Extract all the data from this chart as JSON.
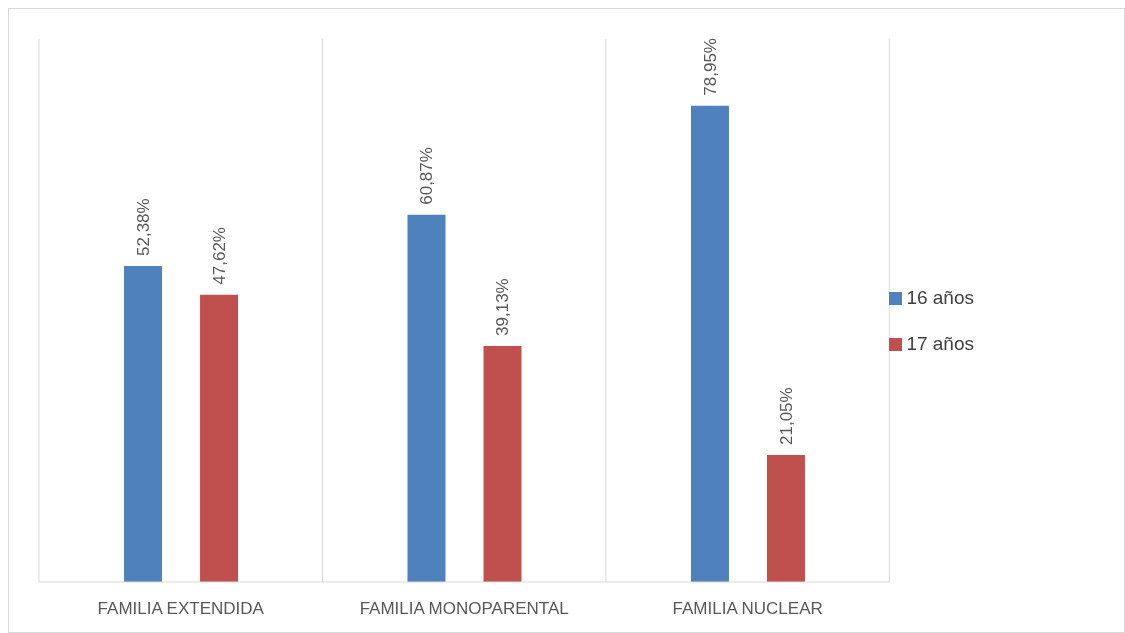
{
  "chart_data": {
    "type": "bar",
    "categories": [
      "FAMILIA EXTENDIDA",
      "FAMILIA MONOPARENTAL",
      "FAMILIA NUCLEAR"
    ],
    "series": [
      {
        "name": "16 años",
        "color": "#4f81bd",
        "values": [
          52.38,
          60.87,
          78.95
        ],
        "value_labels": [
          "52,38%",
          "60,87%",
          "78,95%"
        ]
      },
      {
        "name": "17 años",
        "color": "#c0504d",
        "values": [
          47.62,
          39.13,
          21.05
        ],
        "value_labels": [
          "47,62%",
          "39,13%",
          "21,05%"
        ]
      }
    ],
    "grid": "x",
    "legend": "right",
    "data_labels": true
  }
}
